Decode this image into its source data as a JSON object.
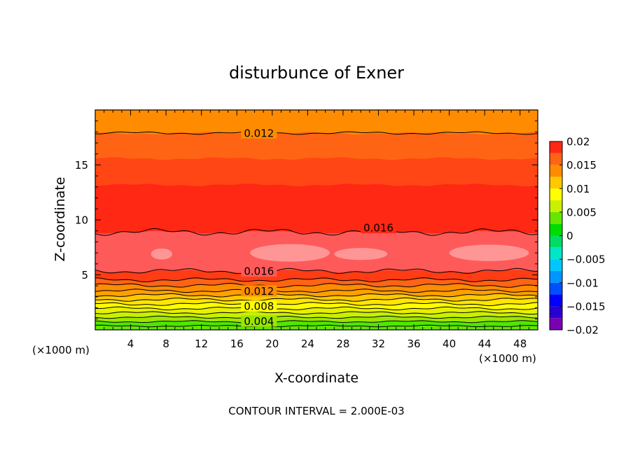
{
  "chart_data": {
    "type": "heatmap",
    "subtype": "filled-contour",
    "title": "disturbunce of Exner",
    "xlabel": "X-coordinate",
    "ylabel": "Z-coordinate",
    "x_unit_left": "(×1000 m)",
    "x_unit_right": "(×1000 m)",
    "xlim": [
      0,
      50
    ],
    "ylim": [
      0,
      20
    ],
    "x_ticks": [
      4,
      8,
      12,
      16,
      20,
      24,
      28,
      32,
      36,
      40,
      44,
      48
    ],
    "x_tick_labels": [
      "4",
      "8",
      "12",
      "16",
      "20",
      "24",
      "28",
      "32",
      "36",
      "40",
      "44",
      "48"
    ],
    "y_ticks": [
      5,
      10,
      15
    ],
    "y_tick_labels": [
      "5",
      "10",
      "15"
    ],
    "footer": "CONTOUR INTERVAL = 2.000E-03",
    "contour_interval": 0.002,
    "colorbar": {
      "levels": [
        -0.02,
        -0.0175,
        -0.015,
        -0.0125,
        -0.01,
        -0.0075,
        -0.005,
        -0.0025,
        0,
        0.0025,
        0.005,
        0.0075,
        0.01,
        0.0125,
        0.015,
        0.0175,
        0.02
      ],
      "colors": [
        "#7a00b4",
        "#2800d2",
        "#0000ff",
        "#0050ff",
        "#0096ff",
        "#00c8ff",
        "#00e6c8",
        "#00dc64",
        "#00dc00",
        "#64e600",
        "#c8f000",
        "#ffff00",
        "#ffc800",
        "#ff8c00",
        "#ff6414",
        "#ff2814",
        "#ff5a5a",
        "#ff9696"
      ],
      "tick_values": [
        0.02,
        0.015,
        0.01,
        0.005,
        0,
        -0.005,
        -0.01,
        -0.015,
        -0.02
      ],
      "tick_labels": [
        "0.02",
        "0.015",
        "0.01",
        "0.005",
        "0",
        "−0.005",
        "−0.01",
        "−0.015",
        "−0.02"
      ]
    },
    "bands": [
      {
        "z0": 0.0,
        "z1": 0.35,
        "color": "#64e600"
      },
      {
        "z0": 0.35,
        "z1": 0.75,
        "color": "#50e600"
      },
      {
        "z0": 0.75,
        "z1": 1.15,
        "color": "#9be600"
      },
      {
        "z0": 1.15,
        "z1": 1.55,
        "color": "#c8f000"
      },
      {
        "z0": 1.55,
        "z1": 1.95,
        "color": "#e6f000"
      },
      {
        "z0": 1.95,
        "z1": 2.35,
        "color": "#ffff00"
      },
      {
        "z0": 2.35,
        "z1": 2.75,
        "color": "#ffe600"
      },
      {
        "z0": 2.75,
        "z1": 3.15,
        "color": "#ffc800"
      },
      {
        "z0": 3.15,
        "z1": 3.55,
        "color": "#ffa000"
      },
      {
        "z0": 3.55,
        "z1": 4.05,
        "color": "#ff8c00"
      },
      {
        "z0": 4.05,
        "z1": 4.55,
        "color": "#ff6414"
      },
      {
        "z0": 4.55,
        "z1": 5.35,
        "color": "#ff3c14"
      },
      {
        "z0": 5.35,
        "z1": 8.9,
        "color": "#ff5a5a"
      },
      {
        "z0": 8.9,
        "z1": 13.2,
        "color": "#ff2814"
      },
      {
        "z0": 13.2,
        "z1": 15.6,
        "color": "#ff4614"
      },
      {
        "z0": 15.6,
        "z1": 17.9,
        "color": "#ff6414"
      },
      {
        "z0": 17.9,
        "z1": 20.0,
        "color": "#ff8c00"
      }
    ],
    "blobs": [
      {
        "x": 7.5,
        "z": 6.9,
        "rx": 1.2,
        "rz": 0.5,
        "color": "#ff9696"
      },
      {
        "x": 22.0,
        "z": 7.0,
        "rx": 4.5,
        "rz": 0.8,
        "color": "#ff9696"
      },
      {
        "x": 30.0,
        "z": 6.9,
        "rx": 3.0,
        "rz": 0.55,
        "color": "#ff9696"
      },
      {
        "x": 44.5,
        "z": 7.0,
        "rx": 4.5,
        "rz": 0.75,
        "color": "#ff9696"
      }
    ],
    "contour_lines": [
      {
        "z": 0.35,
        "amp": 0.05
      },
      {
        "z": 0.75,
        "amp": 0.06
      },
      {
        "z": 1.15,
        "amp": 0.07
      },
      {
        "z": 1.55,
        "amp": 0.08
      },
      {
        "z": 1.95,
        "amp": 0.09
      },
      {
        "z": 2.35,
        "amp": 0.1
      },
      {
        "z": 2.75,
        "amp": 0.1
      },
      {
        "z": 3.15,
        "amp": 0.1
      },
      {
        "z": 3.55,
        "amp": 0.1
      },
      {
        "z": 4.05,
        "amp": 0.12
      },
      {
        "z": 4.55,
        "amp": 0.12
      },
      {
        "z": 5.35,
        "amp": 0.15
      },
      {
        "z": 8.9,
        "amp": 0.2
      },
      {
        "z": 17.9,
        "amp": 0.08
      }
    ],
    "contour_labels": [
      {
        "text": "0.012",
        "x": 18.5,
        "z": 17.9
      },
      {
        "text": "0.016",
        "x": 32.0,
        "z": 9.3
      },
      {
        "text": "0.016",
        "x": 18.5,
        "z": 5.35
      },
      {
        "text": "0.012",
        "x": 18.5,
        "z": 3.55
      },
      {
        "text": "0.008",
        "x": 18.5,
        "z": 2.15
      },
      {
        "text": "0.004",
        "x": 18.5,
        "z": 0.8
      }
    ]
  }
}
